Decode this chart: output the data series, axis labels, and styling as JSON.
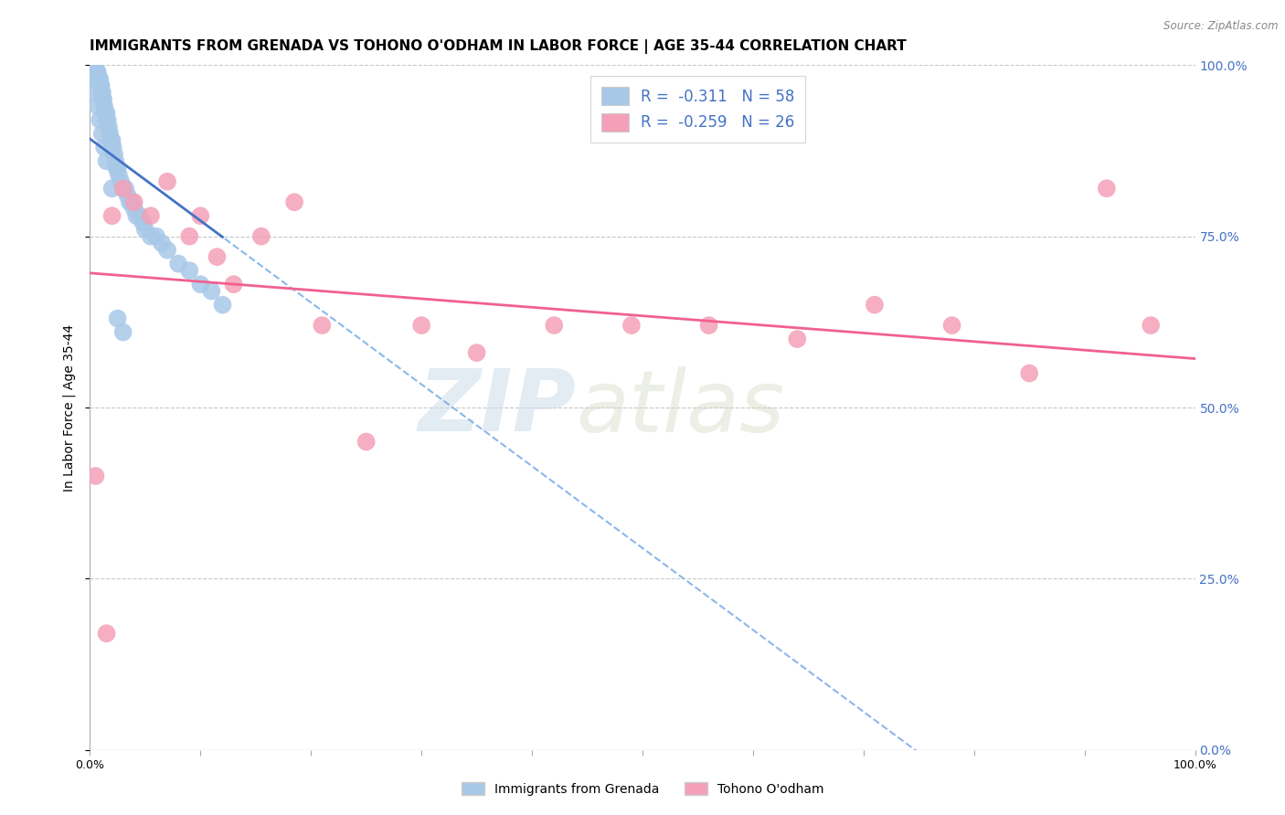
{
  "title": "IMMIGRANTS FROM GRENADA VS TOHONO O'ODHAM IN LABOR FORCE | AGE 35-44 CORRELATION CHART",
  "source": "Source: ZipAtlas.com",
  "ylabel": "In Labor Force | Age 35-44",
  "blue_label": "Immigrants from Grenada",
  "pink_label": "Tohono O'odham",
  "blue_R": -0.311,
  "blue_N": 58,
  "pink_R": -0.259,
  "pink_N": 26,
  "blue_color": "#A8C8E8",
  "pink_color": "#F4A0B8",
  "blue_line_color": "#4472C4",
  "pink_line_color": "#F06090",
  "dash_line_color": "#7EB0E8",
  "xlim": [
    0.0,
    1.0
  ],
  "ylim": [
    0.0,
    1.0
  ],
  "yticks": [
    0.0,
    0.25,
    0.5,
    0.75,
    1.0
  ],
  "ytick_labels": [
    "0.0%",
    "25.0%",
    "50.0%",
    "75.0%",
    "100.0%"
  ],
  "background_color": "#FFFFFF",
  "grid_color": "#C8C8C8",
  "watermark_zip": "ZIP",
  "watermark_atlas": "atlas",
  "title_fontsize": 11,
  "axis_label_fontsize": 10,
  "tick_fontsize": 9,
  "legend_fontsize": 12,
  "blue_x": [
    0.003,
    0.004,
    0.005,
    0.006,
    0.007,
    0.008,
    0.009,
    0.01,
    0.01,
    0.011,
    0.011,
    0.012,
    0.012,
    0.013,
    0.014,
    0.015,
    0.015,
    0.016,
    0.017,
    0.018,
    0.019,
    0.02,
    0.021,
    0.022,
    0.023,
    0.024,
    0.025,
    0.026,
    0.028,
    0.03,
    0.032,
    0.034,
    0.036,
    0.038,
    0.04,
    0.042,
    0.045,
    0.048,
    0.05,
    0.055,
    0.06,
    0.065,
    0.07,
    0.08,
    0.09,
    0.1,
    0.11,
    0.12,
    0.003,
    0.005,
    0.007,
    0.009,
    0.011,
    0.013,
    0.015,
    0.02,
    0.025,
    0.03
  ],
  "blue_y": [
    1.0,
    1.0,
    1.0,
    0.99,
    0.99,
    0.98,
    0.98,
    0.97,
    0.97,
    0.96,
    0.96,
    0.95,
    0.95,
    0.94,
    0.93,
    0.93,
    0.92,
    0.92,
    0.91,
    0.9,
    0.89,
    0.89,
    0.88,
    0.87,
    0.86,
    0.85,
    0.85,
    0.84,
    0.83,
    0.82,
    0.82,
    0.81,
    0.8,
    0.8,
    0.79,
    0.78,
    0.78,
    0.77,
    0.76,
    0.75,
    0.75,
    0.74,
    0.73,
    0.71,
    0.7,
    0.68,
    0.67,
    0.65,
    0.98,
    0.96,
    0.94,
    0.92,
    0.9,
    0.88,
    0.86,
    0.82,
    0.63,
    0.61
  ],
  "pink_x": [
    0.005,
    0.015,
    0.02,
    0.03,
    0.04,
    0.055,
    0.07,
    0.09,
    0.1,
    0.115,
    0.13,
    0.155,
    0.185,
    0.21,
    0.25,
    0.3,
    0.35,
    0.42,
    0.49,
    0.56,
    0.64,
    0.71,
    0.78,
    0.85,
    0.92,
    0.96
  ],
  "pink_y": [
    0.4,
    0.17,
    0.78,
    0.82,
    0.8,
    0.78,
    0.83,
    0.75,
    0.78,
    0.72,
    0.68,
    0.75,
    0.8,
    0.62,
    0.45,
    0.62,
    0.58,
    0.62,
    0.62,
    0.62,
    0.6,
    0.65,
    0.62,
    0.55,
    0.82,
    0.62
  ]
}
